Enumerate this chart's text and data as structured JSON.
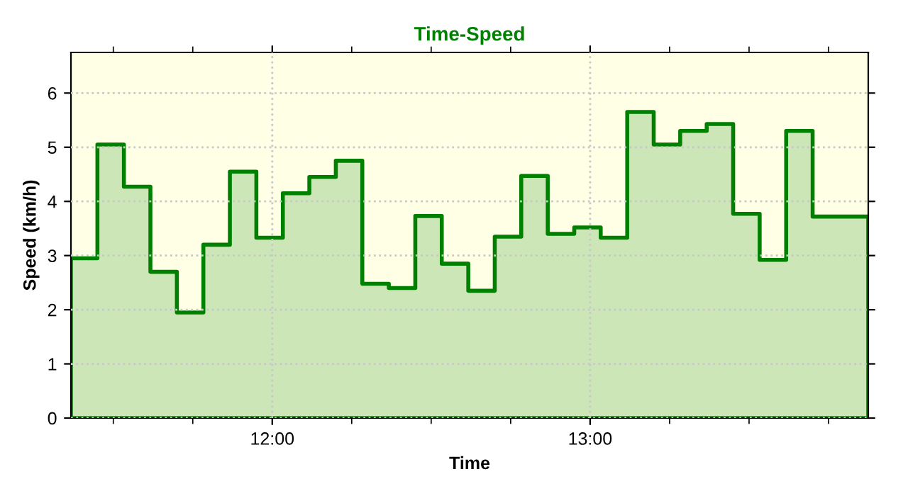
{
  "chart_data": {
    "type": "area",
    "title": "Time-Speed",
    "xlabel": "Time",
    "ylabel": "Speed (km/h)",
    "x": [
      11.3667,
      11.45,
      11.5333,
      11.6167,
      11.7,
      11.7833,
      11.8667,
      11.95,
      12.0333,
      12.1167,
      12.2,
      12.2833,
      12.3667,
      12.45,
      12.5333,
      12.6167,
      12.7,
      12.7833,
      12.8667,
      12.95,
      13.0333,
      13.1167,
      13.2,
      13.2833,
      13.3667,
      13.45,
      13.5333,
      13.6167,
      13.7,
      13.875
    ],
    "series": [
      {
        "color": "#008000",
        "values": [
          2.95,
          5.05,
          4.27,
          2.7,
          1.95,
          3.2,
          4.55,
          3.33,
          4.15,
          4.45,
          4.75,
          2.48,
          2.4,
          3.73,
          2.85,
          2.35,
          3.35,
          4.47,
          3.4,
          3.52,
          3.33,
          5.65,
          5.05,
          5.3,
          5.43,
          3.77,
          2.92,
          5.3,
          3.72,
          3.72
        ]
      }
    ],
    "xlim": [
      11.3667,
      13.875
    ],
    "xticks": [
      {
        "value": 11.5,
        "label": null
      },
      {
        "value": 11.75,
        "label": null
      },
      {
        "value": 12,
        "label": "12:00"
      },
      {
        "value": 12.25,
        "label": null
      },
      {
        "value": 12.5,
        "label": null
      },
      {
        "value": 12.75,
        "label": null
      },
      {
        "value": 13,
        "label": "13:00"
      },
      {
        "value": 13.25,
        "label": null
      },
      {
        "value": 13.5,
        "label": null
      },
      {
        "value": 13.75,
        "label": null
      }
    ],
    "ylim": [
      0,
      6.75
    ],
    "yticks": [
      0,
      1,
      2,
      3,
      4,
      5,
      6
    ],
    "grid": true,
    "line_style": "solid"
  }
}
